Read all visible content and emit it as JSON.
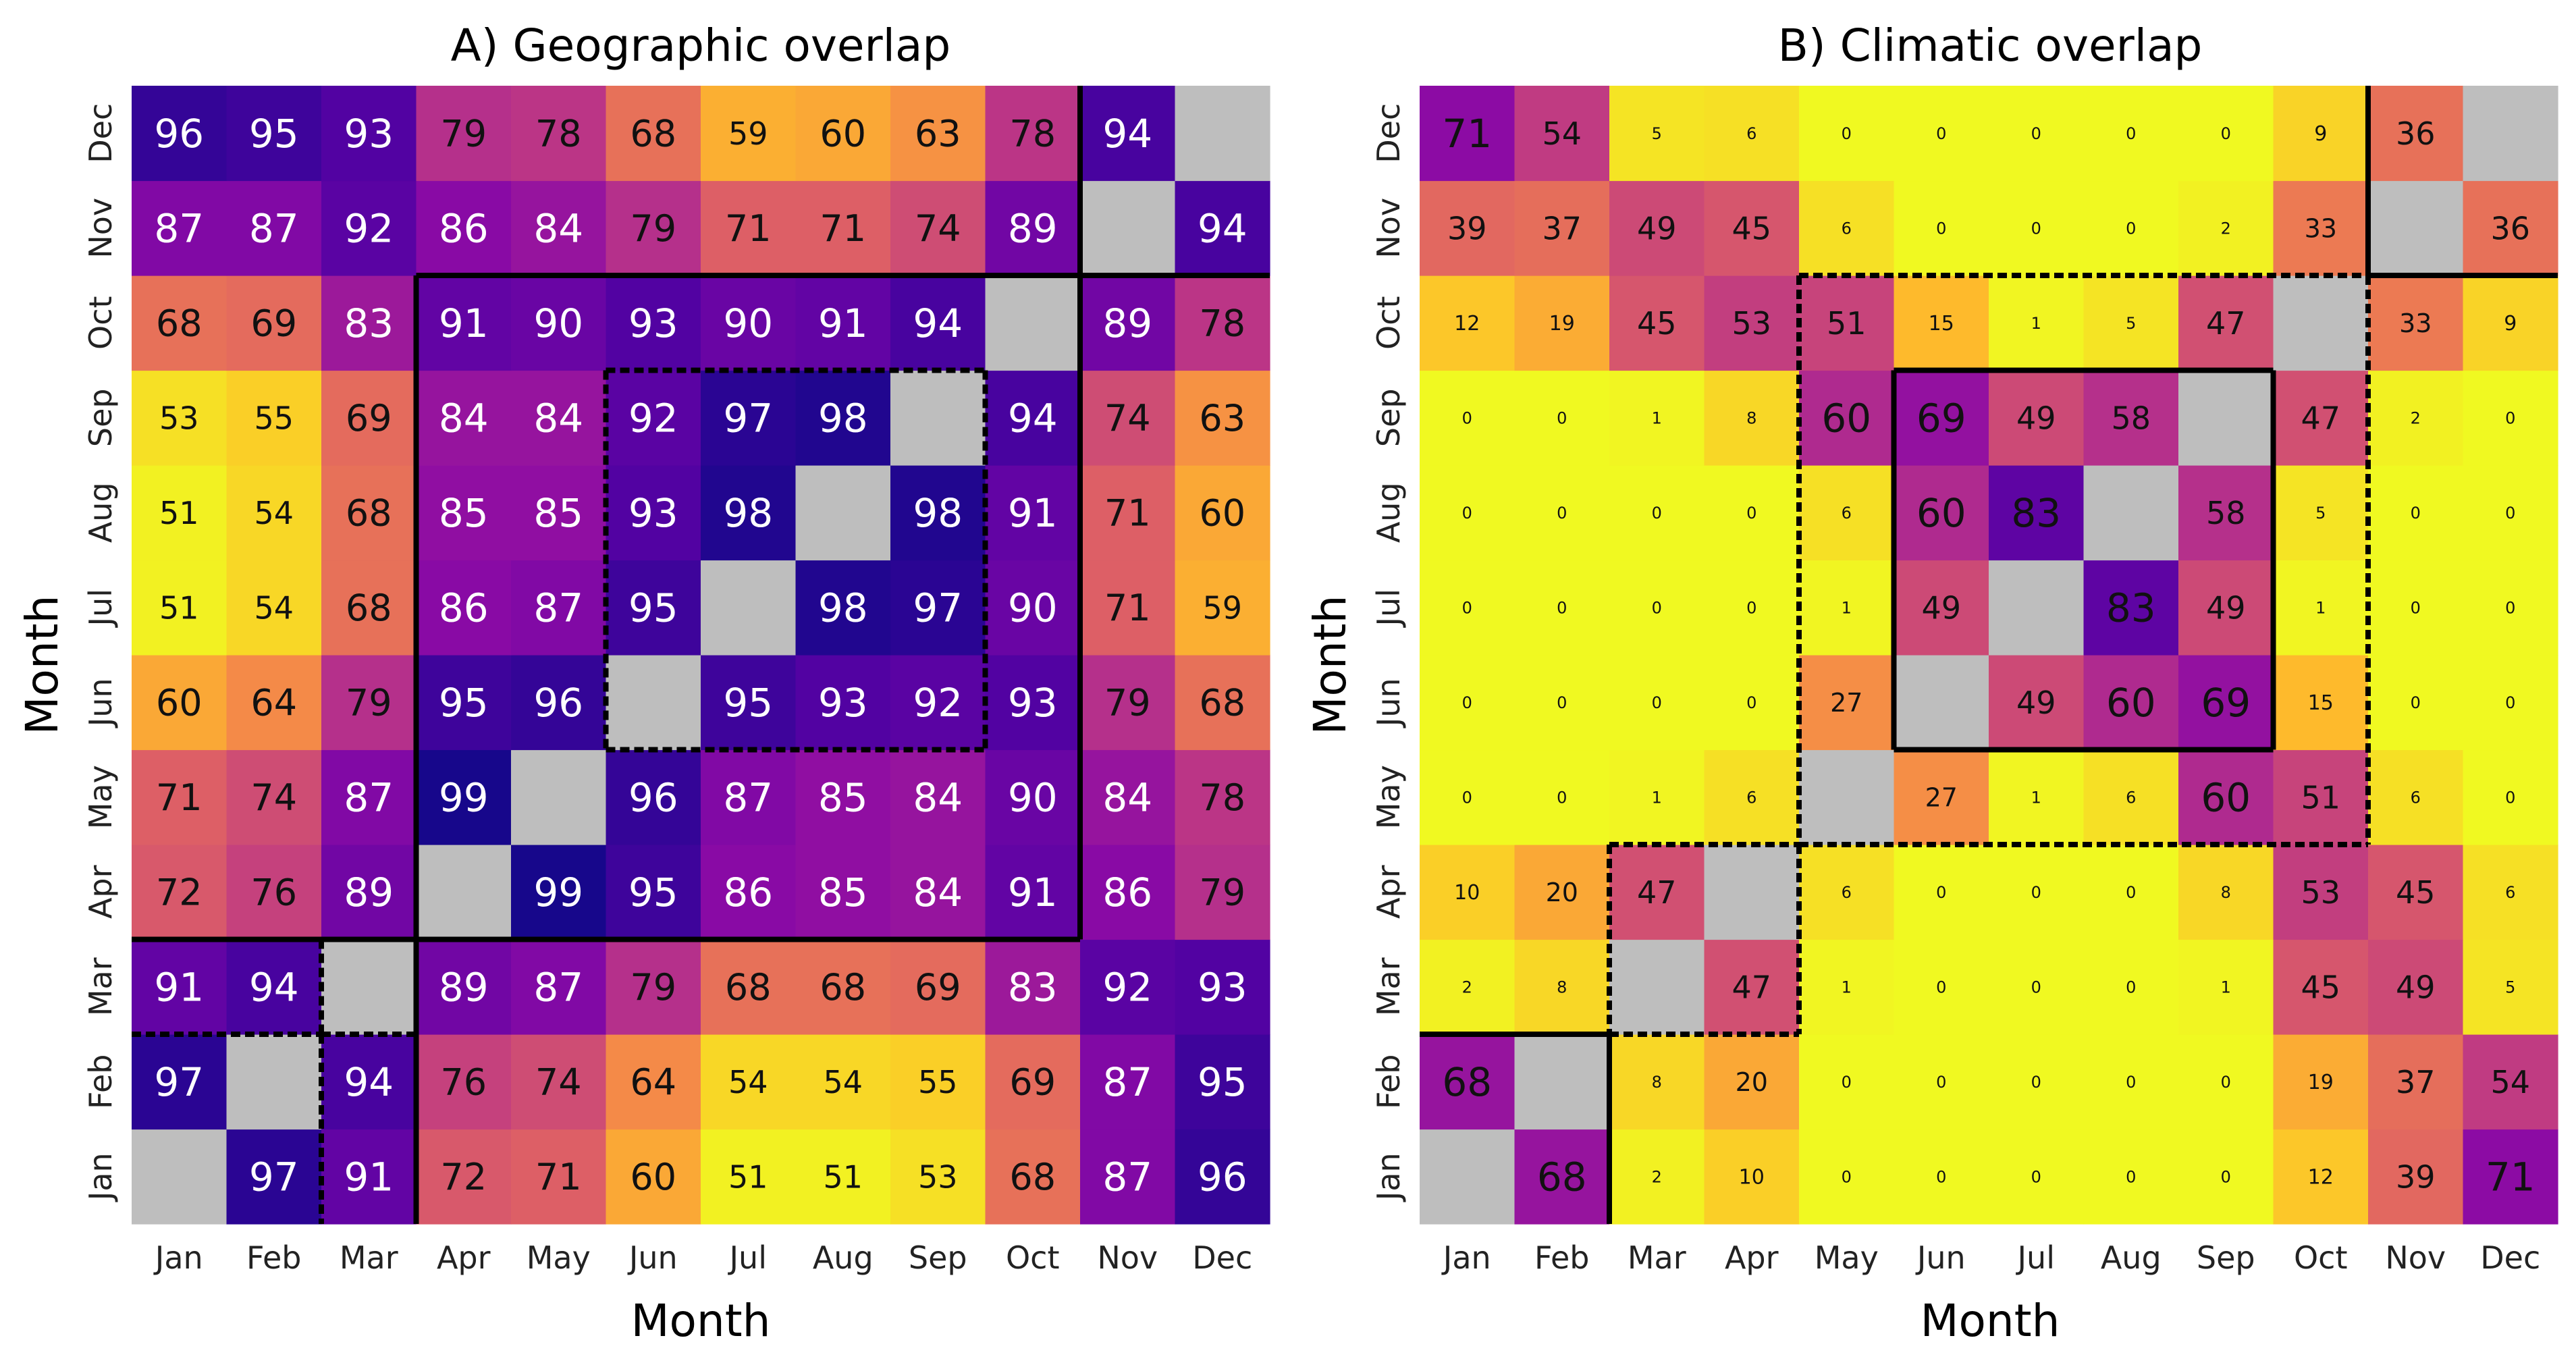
{
  "months": [
    "Jan",
    "Feb",
    "Mar",
    "Apr",
    "May",
    "Jun",
    "Jul",
    "Aug",
    "Sep",
    "Oct",
    "Nov",
    "Dec"
  ],
  "chart_data": [
    {
      "type": "heatmap",
      "title": "A) Geographic overlap",
      "xlabel": "Month",
      "ylabel": "Month",
      "colors": [
        "#f0f921",
        "#febd2a",
        "#f48849",
        "#db5c68",
        "#b83289",
        "#8b0aa5",
        "#5302a3",
        "#0d0887"
      ],
      "color_range": [
        50,
        100
      ],
      "diagonal_color": "#bebebe",
      "values": [
        [
          null,
          97,
          91,
          72,
          71,
          60,
          51,
          51,
          53,
          68,
          87,
          96
        ],
        [
          97,
          null,
          94,
          76,
          74,
          64,
          54,
          54,
          55,
          69,
          87,
          95
        ],
        [
          91,
          94,
          null,
          89,
          87,
          79,
          68,
          68,
          69,
          83,
          92,
          93
        ],
        [
          72,
          76,
          89,
          null,
          99,
          95,
          86,
          85,
          84,
          91,
          86,
          79
        ],
        [
          71,
          74,
          87,
          99,
          null,
          96,
          87,
          85,
          84,
          90,
          84,
          78
        ],
        [
          60,
          64,
          79,
          95,
          96,
          null,
          95,
          93,
          92,
          93,
          79,
          68
        ],
        [
          51,
          54,
          68,
          86,
          87,
          95,
          null,
          98,
          97,
          90,
          71,
          59
        ],
        [
          51,
          54,
          68,
          85,
          85,
          93,
          98,
          null,
          98,
          91,
          71,
          60
        ],
        [
          53,
          55,
          69,
          84,
          84,
          92,
          97,
          98,
          null,
          94,
          74,
          63
        ],
        [
          68,
          69,
          83,
          91,
          90,
          93,
          90,
          91,
          94,
          null,
          89,
          78
        ],
        [
          87,
          87,
          92,
          86,
          84,
          79,
          71,
          71,
          74,
          89,
          null,
          94
        ],
        [
          96,
          95,
          93,
          79,
          78,
          68,
          59,
          60,
          63,
          78,
          94,
          null
        ]
      ],
      "solid_blocks": [
        [
          0,
          2
        ],
        [
          3,
          9
        ],
        [
          10,
          11
        ]
      ],
      "dashed_blocks": [
        [
          0,
          1
        ],
        [
          2,
          2
        ],
        [
          5,
          8
        ]
      ]
    },
    {
      "type": "heatmap",
      "title": "B) Climatic overlap",
      "xlabel": "Month",
      "ylabel": "Month",
      "colors": [
        "#f0f921",
        "#febd2a",
        "#f48849",
        "#db5c68",
        "#b83289",
        "#8b0aa5",
        "#5302a3",
        "#0d0887"
      ],
      "color_range": [
        0,
        100
      ],
      "diagonal_color": "#bebebe",
      "values": [
        [
          null,
          68,
          2,
          10,
          0,
          0,
          0,
          0,
          0,
          12,
          39,
          71
        ],
        [
          68,
          null,
          8,
          20,
          0,
          0,
          0,
          0,
          0,
          19,
          37,
          54
        ],
        [
          2,
          8,
          null,
          47,
          1,
          0,
          0,
          0,
          1,
          45,
          49,
          5
        ],
        [
          10,
          20,
          47,
          null,
          6,
          0,
          0,
          0,
          8,
          53,
          45,
          6
        ],
        [
          0,
          0,
          1,
          6,
          null,
          27,
          1,
          6,
          60,
          51,
          6,
          0
        ],
        [
          0,
          0,
          0,
          0,
          27,
          null,
          49,
          60,
          69,
          15,
          0,
          0
        ],
        [
          0,
          0,
          0,
          0,
          1,
          49,
          null,
          83,
          49,
          1,
          0,
          0
        ],
        [
          0,
          0,
          0,
          0,
          6,
          60,
          83,
          null,
          58,
          5,
          0,
          0
        ],
        [
          0,
          0,
          1,
          8,
          60,
          69,
          49,
          58,
          null,
          47,
          2,
          0
        ],
        [
          12,
          19,
          45,
          53,
          51,
          15,
          1,
          5,
          47,
          null,
          33,
          9
        ],
        [
          39,
          37,
          49,
          45,
          6,
          0,
          0,
          0,
          2,
          33,
          null,
          36
        ],
        [
          71,
          54,
          5,
          6,
          0,
          0,
          0,
          0,
          0,
          9,
          36,
          null
        ]
      ],
      "solid_blocks": [
        [
          0,
          1
        ],
        [
          5,
          8
        ],
        [
          10,
          11
        ]
      ],
      "dashed_blocks": [
        [
          2,
          3
        ],
        [
          4,
          9
        ]
      ]
    }
  ]
}
